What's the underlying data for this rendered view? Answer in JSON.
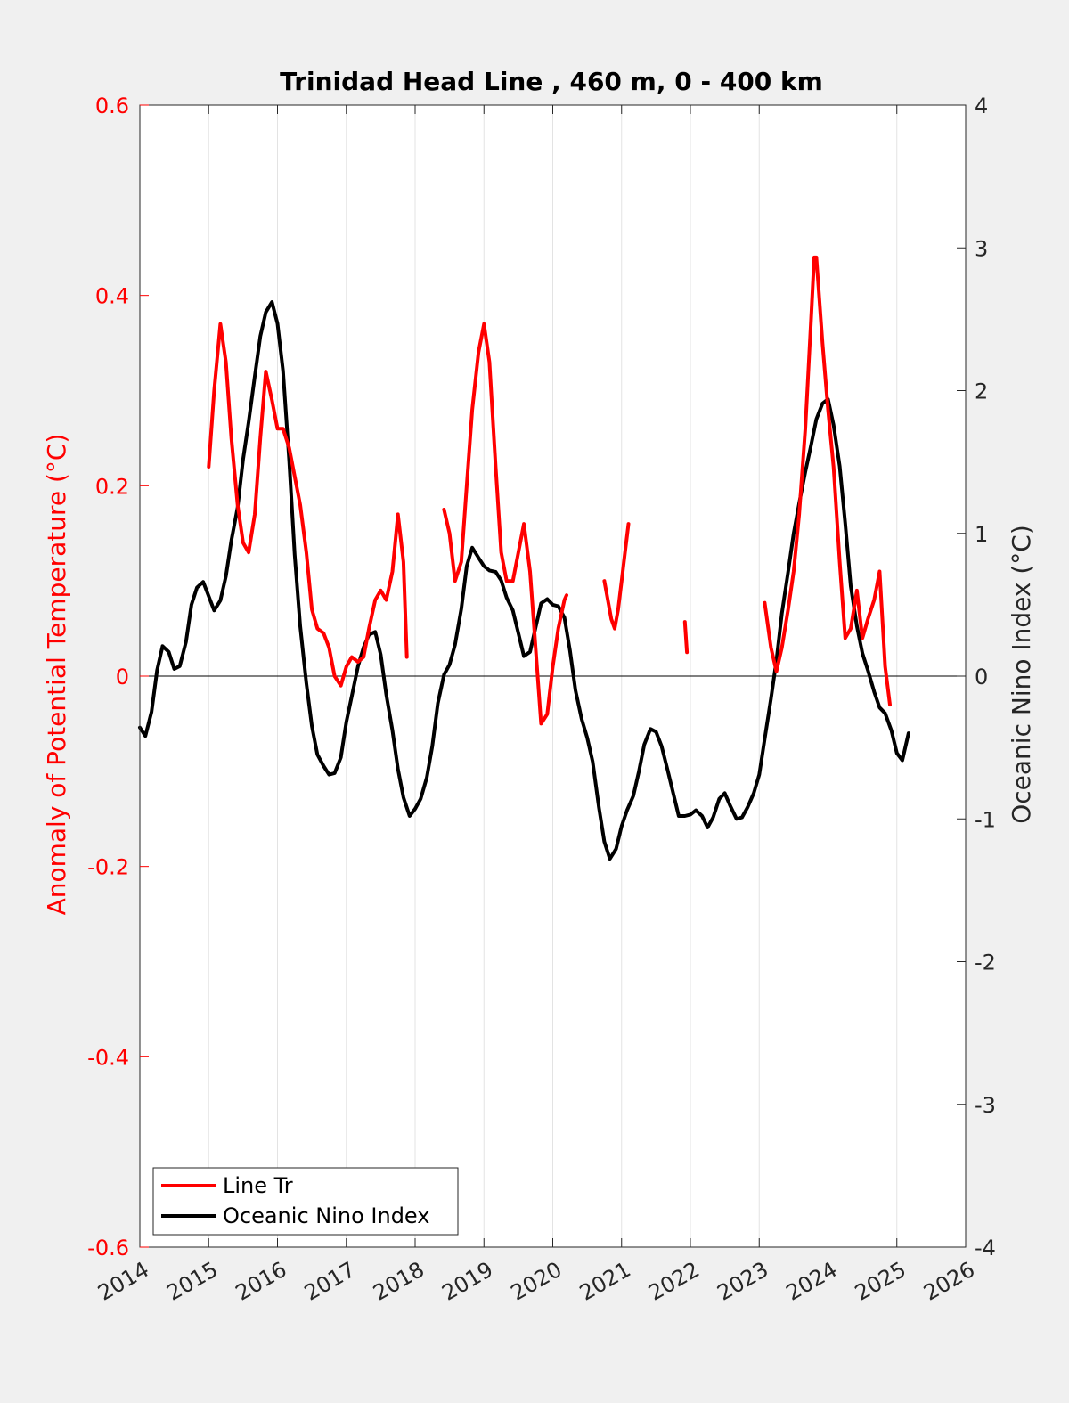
{
  "colors": {
    "background": "#f0f0f0",
    "plot_bg": "#ffffff",
    "line_tr": "#ff0000",
    "oni": "#000000",
    "left_axis": "#ff0000",
    "right_axis": "#262626",
    "grid": "#e3e3e3"
  },
  "chart_data": {
    "type": "line",
    "title": "Trinidad Head Line , 460 m, 0 - 400 km",
    "xlabel": "",
    "ylabel_left": "Anomaly of Potential Temperature (°C)",
    "ylabel_right": "Oceanic Nino Index (°C)",
    "xlim": [
      2014,
      2026
    ],
    "ylim_left": [
      -0.6,
      0.6
    ],
    "ylim_right": [
      -4,
      4
    ],
    "x_ticks": [
      "2014",
      "2015",
      "2016",
      "2017",
      "2018",
      "2019",
      "2020",
      "2021",
      "2022",
      "2023",
      "2024",
      "2025",
      "2026"
    ],
    "y_ticks_left": [
      "-0.6",
      "-0.4",
      "-0.2",
      "0",
      "0.2",
      "0.4",
      "0.6"
    ],
    "y_ticks_right": [
      "-4",
      "-3",
      "-2",
      "-1",
      "0",
      "1",
      "2",
      "3",
      "4"
    ],
    "grid": "vertical",
    "zero_line": true,
    "legend_position": "bottom-left",
    "series": [
      {
        "name": "Line Tr",
        "axis": "left",
        "segments": [
          [
            [
              2015.0,
              0.22
            ],
            [
              2015.08,
              0.3
            ],
            [
              2015.17,
              0.37
            ],
            [
              2015.25,
              0.33
            ],
            [
              2015.33,
              0.25
            ],
            [
              2015.42,
              0.18
            ],
            [
              2015.5,
              0.14
            ],
            [
              2015.58,
              0.13
            ],
            [
              2015.67,
              0.17
            ],
            [
              2015.75,
              0.25
            ],
            [
              2015.83,
              0.32
            ],
            [
              2015.92,
              0.29
            ],
            [
              2016.0,
              0.26
            ],
            [
              2016.08,
              0.26
            ],
            [
              2016.17,
              0.24
            ],
            [
              2016.25,
              0.21
            ],
            [
              2016.33,
              0.18
            ],
            [
              2016.42,
              0.13
            ],
            [
              2016.5,
              0.07
            ],
            [
              2016.58,
              0.05
            ],
            [
              2016.67,
              0.045
            ],
            [
              2016.75,
              0.03
            ],
            [
              2016.83,
              0.0
            ],
            [
              2016.92,
              -0.01
            ],
            [
              2017.0,
              0.01
            ],
            [
              2017.08,
              0.02
            ],
            [
              2017.17,
              0.015
            ],
            [
              2017.25,
              0.02
            ],
            [
              2017.33,
              0.05
            ],
            [
              2017.42,
              0.08
            ],
            [
              2017.5,
              0.09
            ],
            [
              2017.58,
              0.08
            ],
            [
              2017.67,
              0.11
            ],
            [
              2017.75,
              0.17
            ],
            [
              2017.83,
              0.12
            ],
            [
              2017.88,
              0.02
            ]
          ],
          [
            [
              2018.42,
              0.175
            ],
            [
              2018.5,
              0.15
            ],
            [
              2018.58,
              0.1
            ],
            [
              2018.67,
              0.12
            ],
            [
              2018.75,
              0.2
            ],
            [
              2018.83,
              0.28
            ],
            [
              2018.92,
              0.34
            ],
            [
              2019.0,
              0.37
            ],
            [
              2019.08,
              0.33
            ],
            [
              2019.17,
              0.22
            ],
            [
              2019.25,
              0.13
            ],
            [
              2019.33,
              0.1
            ],
            [
              2019.42,
              0.1
            ],
            [
              2019.5,
              0.13
            ],
            [
              2019.58,
              0.16
            ],
            [
              2019.67,
              0.11
            ],
            [
              2019.75,
              0.03
            ],
            [
              2019.83,
              -0.05
            ],
            [
              2019.92,
              -0.04
            ],
            [
              2020.0,
              0.01
            ],
            [
              2020.08,
              0.05
            ],
            [
              2020.17,
              0.08
            ],
            [
              2020.2,
              0.085
            ]
          ],
          [
            [
              2020.75,
              0.1
            ],
            [
              2020.8,
              0.08
            ],
            [
              2020.85,
              0.06
            ],
            [
              2020.9,
              0.05
            ],
            [
              2020.95,
              0.07
            ],
            [
              2021.0,
              0.1
            ],
            [
              2021.05,
              0.13
            ],
            [
              2021.1,
              0.16
            ]
          ],
          [
            [
              2021.92,
              0.057
            ],
            [
              2021.95,
              0.025
            ]
          ],
          [
            [
              2023.08,
              0.077
            ],
            [
              2023.17,
              0.03
            ],
            [
              2023.25,
              0.005
            ],
            [
              2023.33,
              0.03
            ],
            [
              2023.42,
              0.07
            ],
            [
              2023.5,
              0.11
            ],
            [
              2023.58,
              0.17
            ],
            [
              2023.67,
              0.26
            ],
            [
              2023.75,
              0.37
            ],
            [
              2023.8,
              0.44
            ],
            [
              2023.83,
              0.44
            ],
            [
              2023.92,
              0.35
            ],
            [
              2024.0,
              0.28
            ],
            [
              2024.08,
              0.22
            ],
            [
              2024.17,
              0.12
            ],
            [
              2024.25,
              0.04
            ],
            [
              2024.33,
              0.05
            ],
            [
              2024.42,
              0.09
            ],
            [
              2024.5,
              0.04
            ],
            [
              2024.58,
              0.06
            ],
            [
              2024.67,
              0.08
            ],
            [
              2024.75,
              0.11
            ],
            [
              2024.83,
              0.01
            ],
            [
              2024.9,
              -0.03
            ]
          ]
        ]
      },
      {
        "name": "Oceanic Nino Index",
        "axis": "right",
        "segments": [
          [
            [
              2014.0,
              -0.36
            ],
            [
              2014.08,
              -0.42
            ],
            [
              2014.17,
              -0.25
            ],
            [
              2014.25,
              0.04
            ],
            [
              2014.33,
              0.21
            ],
            [
              2014.42,
              0.17
            ],
            [
              2014.5,
              0.05
            ],
            [
              2014.58,
              0.07
            ],
            [
              2014.67,
              0.24
            ],
            [
              2014.75,
              0.5
            ],
            [
              2014.83,
              0.62
            ],
            [
              2014.92,
              0.66
            ],
            [
              2015.0,
              0.56
            ],
            [
              2015.08,
              0.46
            ],
            [
              2015.17,
              0.53
            ],
            [
              2015.25,
              0.7
            ],
            [
              2015.33,
              0.95
            ],
            [
              2015.42,
              1.18
            ],
            [
              2015.5,
              1.52
            ],
            [
              2015.58,
              1.78
            ],
            [
              2015.67,
              2.1
            ],
            [
              2015.75,
              2.38
            ],
            [
              2015.83,
              2.55
            ],
            [
              2015.92,
              2.62
            ],
            [
              2016.0,
              2.47
            ],
            [
              2016.08,
              2.14
            ],
            [
              2016.17,
              1.51
            ],
            [
              2016.25,
              0.85
            ],
            [
              2016.33,
              0.35
            ],
            [
              2016.42,
              -0.05
            ],
            [
              2016.5,
              -0.35
            ],
            [
              2016.58,
              -0.55
            ],
            [
              2016.67,
              -0.63
            ],
            [
              2016.75,
              -0.69
            ],
            [
              2016.83,
              -0.68
            ],
            [
              2016.92,
              -0.57
            ],
            [
              2017.0,
              -0.32
            ],
            [
              2017.08,
              -0.14
            ],
            [
              2017.17,
              0.07
            ],
            [
              2017.25,
              0.2
            ],
            [
              2017.33,
              0.29
            ],
            [
              2017.42,
              0.31
            ],
            [
              2017.5,
              0.15
            ],
            [
              2017.58,
              -0.13
            ],
            [
              2017.67,
              -0.38
            ],
            [
              2017.75,
              -0.65
            ],
            [
              2017.83,
              -0.85
            ],
            [
              2017.92,
              -0.98
            ],
            [
              2018.0,
              -0.93
            ],
            [
              2018.08,
              -0.86
            ],
            [
              2018.17,
              -0.71
            ],
            [
              2018.25,
              -0.49
            ],
            [
              2018.33,
              -0.19
            ],
            [
              2018.42,
              0.01
            ],
            [
              2018.5,
              0.08
            ],
            [
              2018.58,
              0.22
            ],
            [
              2018.67,
              0.47
            ],
            [
              2018.75,
              0.77
            ],
            [
              2018.83,
              0.9
            ],
            [
              2018.92,
              0.83
            ],
            [
              2019.0,
              0.77
            ],
            [
              2019.08,
              0.74
            ],
            [
              2019.17,
              0.73
            ],
            [
              2019.25,
              0.67
            ],
            [
              2019.33,
              0.55
            ],
            [
              2019.42,
              0.46
            ],
            [
              2019.5,
              0.3
            ],
            [
              2019.58,
              0.14
            ],
            [
              2019.67,
              0.17
            ],
            [
              2019.75,
              0.34
            ],
            [
              2019.83,
              0.51
            ],
            [
              2019.92,
              0.54
            ],
            [
              2020.0,
              0.5
            ],
            [
              2020.08,
              0.49
            ],
            [
              2020.17,
              0.41
            ],
            [
              2020.25,
              0.18
            ],
            [
              2020.33,
              -0.1
            ],
            [
              2020.42,
              -0.3
            ],
            [
              2020.5,
              -0.43
            ],
            [
              2020.58,
              -0.6
            ],
            [
              2020.67,
              -0.92
            ],
            [
              2020.75,
              -1.16
            ],
            [
              2020.83,
              -1.28
            ],
            [
              2020.92,
              -1.21
            ],
            [
              2021.0,
              -1.05
            ],
            [
              2021.08,
              -0.94
            ],
            [
              2021.17,
              -0.84
            ],
            [
              2021.25,
              -0.67
            ],
            [
              2021.33,
              -0.48
            ],
            [
              2021.42,
              -0.37
            ],
            [
              2021.5,
              -0.39
            ],
            [
              2021.58,
              -0.49
            ],
            [
              2021.67,
              -0.66
            ],
            [
              2021.75,
              -0.82
            ],
            [
              2021.83,
              -0.98
            ],
            [
              2021.92,
              -0.98
            ],
            [
              2022.0,
              -0.97
            ],
            [
              2022.08,
              -0.94
            ],
            [
              2022.17,
              -0.98
            ],
            [
              2022.25,
              -1.06
            ],
            [
              2022.33,
              -0.99
            ],
            [
              2022.42,
              -0.86
            ],
            [
              2022.5,
              -0.82
            ],
            [
              2022.58,
              -0.91
            ],
            [
              2022.67,
              -1.0
            ],
            [
              2022.75,
              -0.99
            ],
            [
              2022.83,
              -0.92
            ],
            [
              2022.92,
              -0.82
            ],
            [
              2023.0,
              -0.69
            ],
            [
              2023.08,
              -0.44
            ],
            [
              2023.17,
              -0.16
            ],
            [
              2023.25,
              0.11
            ],
            [
              2023.33,
              0.44
            ],
            [
              2023.42,
              0.73
            ],
            [
              2023.5,
              1.0
            ],
            [
              2023.58,
              1.21
            ],
            [
              2023.67,
              1.43
            ],
            [
              2023.75,
              1.61
            ],
            [
              2023.83,
              1.8
            ],
            [
              2023.92,
              1.91
            ],
            [
              2024.0,
              1.94
            ],
            [
              2024.08,
              1.76
            ],
            [
              2024.17,
              1.47
            ],
            [
              2024.25,
              1.07
            ],
            [
              2024.33,
              0.63
            ],
            [
              2024.42,
              0.35
            ],
            [
              2024.5,
              0.16
            ],
            [
              2024.58,
              0.04
            ],
            [
              2024.67,
              -0.11
            ],
            [
              2024.75,
              -0.22
            ],
            [
              2024.83,
              -0.26
            ],
            [
              2024.92,
              -0.38
            ],
            [
              2025.0,
              -0.54
            ],
            [
              2025.08,
              -0.59
            ],
            [
              2025.17,
              -0.4
            ]
          ]
        ]
      }
    ]
  }
}
